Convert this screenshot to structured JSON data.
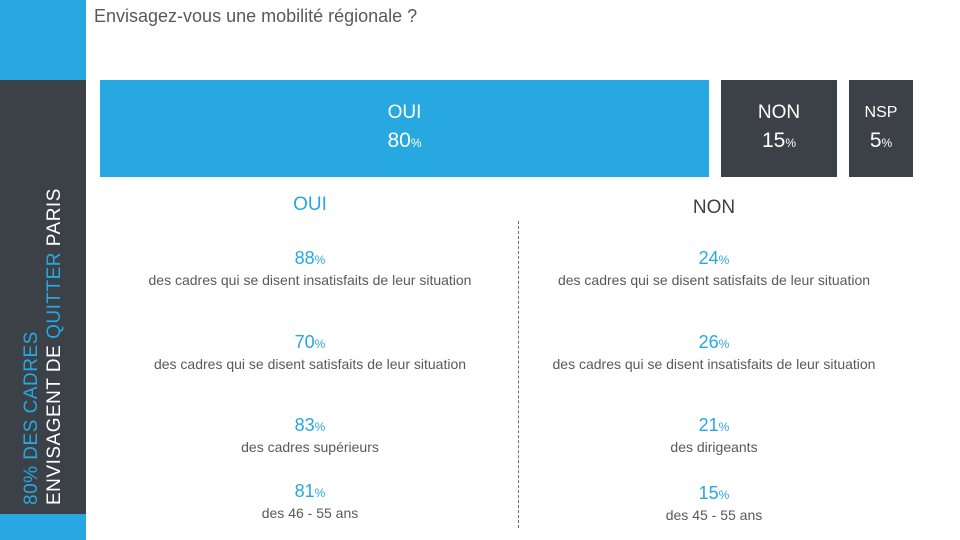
{
  "question": "Envisagez-vous une mobilité régionale ?",
  "side_title": {
    "line1": "80% DES CADRES",
    "line2_a": "ENVISAGENT DE ",
    "line2_b": "QUITTER",
    "line2_c": " PARIS"
  },
  "bars": [
    {
      "label": "OUI",
      "value": "80",
      "unit": "%",
      "percent": 80,
      "color": "#27a8e0"
    },
    {
      "label": "NON",
      "value": "15",
      "unit": "%",
      "percent": 15,
      "color": "#3c4148"
    },
    {
      "label": "NSP",
      "value": "5",
      "unit": "%",
      "percent": 5,
      "color": "#3c4148"
    }
  ],
  "oui_column": {
    "heading": "OUI",
    "stats": [
      {
        "value": "88",
        "unit": "%",
        "desc": "des cadres qui se disent insatisfaits de leur situation"
      },
      {
        "value": "70",
        "unit": "%",
        "desc": "des cadres qui se disent satisfaits de leur situation"
      },
      {
        "value": "83",
        "unit": "%",
        "desc": "des cadres supérieurs"
      },
      {
        "value": "81",
        "unit": "%",
        "desc": "des 46 - 55 ans"
      }
    ]
  },
  "non_column": {
    "heading": "NON",
    "stats": [
      {
        "value": "24",
        "unit": "%",
        "desc": "des cadres qui se disent satisfaits de leur situation"
      },
      {
        "value": "26",
        "unit": "%",
        "desc": "des cadres qui se disent insatisfaits de leur situation"
      },
      {
        "value": "21",
        "unit": "%",
        "desc": "des dirigeants"
      },
      {
        "value": "15",
        "unit": "%",
        "desc": "des 45 - 55 ans"
      }
    ]
  },
  "colors": {
    "accent": "#27a8e0",
    "dark": "#3c4148",
    "text": "#595959"
  }
}
